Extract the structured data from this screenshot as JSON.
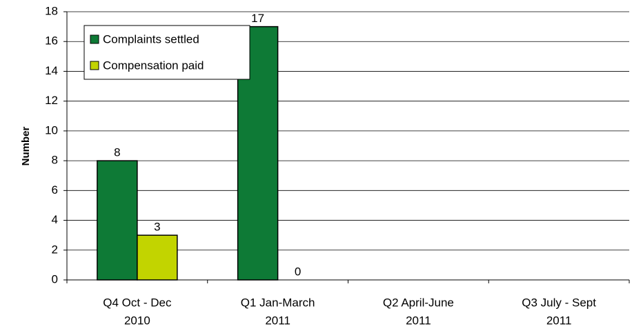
{
  "chart_data": {
    "type": "bar",
    "y_label": "Number",
    "categories": [
      [
        "Q4 Oct - Dec",
        "2010"
      ],
      [
        "Q1 Jan-March",
        "2011"
      ],
      [
        "Q2 April-June",
        "2011"
      ],
      [
        "Q3 July - Sept",
        "2011"
      ]
    ],
    "series": [
      {
        "name": "Complaints settled",
        "color": "#0e7a36",
        "values": [
          8,
          17,
          null,
          null
        ]
      },
      {
        "name": "Compensation paid",
        "color": "#c2d400",
        "values": [
          3,
          0,
          null,
          null
        ]
      }
    ],
    "ylim": [
      0,
      18
    ],
    "yticks": [
      0,
      2,
      4,
      6,
      8,
      10,
      12,
      14,
      16,
      18
    ],
    "grid": true,
    "legend": "top-left"
  }
}
